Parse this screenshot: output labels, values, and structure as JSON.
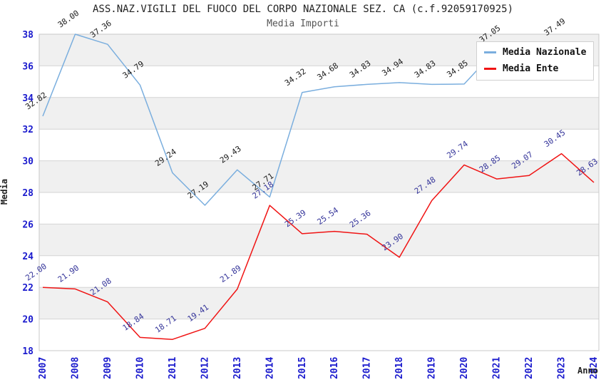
{
  "header": {
    "title": "ASS.NAZ.VIGILI DEL FUOCO DEL CORPO NAZIONALE SEZ. CA (c.f.92059170925)",
    "subtitle": "Media Importi"
  },
  "axes": {
    "x_title": "Anno",
    "y_title": "Media"
  },
  "legend": {
    "position": "top-right",
    "items": [
      {
        "label": "Media Nazionale",
        "color": "#7aaede"
      },
      {
        "label": "Media Ente",
        "color": "#f01414"
      }
    ]
  },
  "colors": {
    "tick_label": "#1a1acd",
    "grid_line": "#d4d4d4",
    "plot_border": "#c8c8c8",
    "band_gray": "#f0f0f0",
    "blue_series_label": "#1a1a1a",
    "red_series_label": "#333399"
  },
  "chart_data": {
    "type": "line",
    "title": "ASS.NAZ.VIGILI DEL FUOCO DEL CORPO NAZIONALE SEZ. CA (c.f.92059170925)",
    "subtitle": "Media Importi",
    "xlabel": "Anno",
    "ylabel": "Media",
    "categories": [
      "2007",
      "2008",
      "2009",
      "2010",
      "2011",
      "2012",
      "2013",
      "2014",
      "2015",
      "2016",
      "2017",
      "2018",
      "2019",
      "2020",
      "2021",
      "2022",
      "2023",
      "2024"
    ],
    "ylim": [
      18,
      38
    ],
    "ytick_step": 2,
    "grid": "horizontal, alternating gray bands starting gray at 38-36",
    "legend_position": "top-right inside plot",
    "series": [
      {
        "name": "Media Nazionale",
        "color": "#7aaede",
        "label_color": "#1a1a1a",
        "values": [
          32.82,
          38.0,
          37.36,
          34.79,
          29.24,
          27.19,
          29.43,
          27.71,
          34.32,
          34.68,
          34.83,
          34.94,
          34.83,
          34.85,
          37.05,
          37.0,
          37.49,
          null
        ],
        "labels": [
          "32.82",
          "38.00",
          "37.36",
          "34.79",
          "29.24",
          "27.19",
          "29.43",
          "27.71",
          "34.32",
          "34.68",
          "34.83",
          "34.94",
          "34.83",
          "34.85",
          "37.05",
          null,
          "37.49",
          null
        ],
        "note": "2022 point and label hidden behind legend (value estimated); no visible 2024 value"
      },
      {
        "name": "Media Ente",
        "color": "#f01414",
        "label_color": "#333399",
        "values": [
          22.0,
          21.9,
          21.08,
          18.84,
          18.71,
          19.41,
          21.89,
          27.18,
          25.39,
          25.54,
          25.36,
          23.9,
          27.48,
          29.74,
          28.85,
          29.07,
          30.45,
          28.63
        ],
        "labels": [
          "22.00",
          "21.90",
          "21.08",
          "18.84",
          "18.71",
          "19.41",
          "21.89",
          "27.18",
          "25.39",
          "25.54",
          "25.36",
          "23.90",
          "27.48",
          "29.74",
          "28.85",
          "29.07",
          "30.45",
          "28.63"
        ]
      }
    ]
  }
}
